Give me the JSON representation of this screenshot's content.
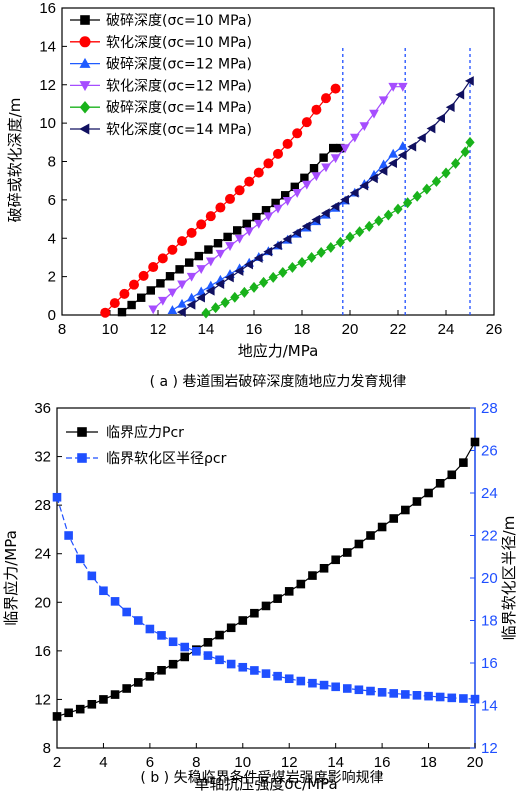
{
  "chart_data": [
    {
      "type": "line",
      "caption": "( a ) 巷道围岩破碎深度随地应力发育规律",
      "xlabel": "地应力/MPa",
      "ylabel": "破碎或软化深度/m",
      "xlim": [
        8,
        26
      ],
      "ylim": [
        0,
        16
      ],
      "xticks": [
        "8",
        "10",
        "12",
        "14",
        "16",
        "18",
        "20",
        "22",
        "24",
        "26"
      ],
      "yticks": [
        "0",
        "2",
        "4",
        "6",
        "8",
        "10",
        "12",
        "14",
        "16"
      ],
      "legend_position": "top-left",
      "series": [
        {
          "name": "破碎深度(σc=10 MPa)",
          "color": "#000000",
          "marker": "square",
          "x": [
            10.5,
            10.9,
            11.3,
            11.7,
            12.1,
            12.5,
            12.9,
            13.3,
            13.7,
            14.1,
            14.5,
            14.9,
            15.3,
            15.7,
            16.1,
            16.5,
            16.9,
            17.3,
            17.7,
            18.1,
            18.5,
            18.9,
            19.3,
            19.6
          ],
          "y": [
            0.15,
            0.52,
            0.9,
            1.28,
            1.65,
            2.02,
            2.38,
            2.73,
            3.07,
            3.41,
            3.74,
            4.07,
            4.41,
            4.75,
            5.1,
            5.46,
            5.84,
            6.24,
            6.68,
            7.15,
            7.65,
            8.2,
            8.7,
            8.7
          ]
        },
        {
          "name": "软化深度(σc=10 MPa)",
          "color": "#ff0000",
          "marker": "circle",
          "x": [
            9.8,
            10.2,
            10.6,
            11.0,
            11.4,
            11.8,
            12.2,
            12.6,
            13.0,
            13.4,
            13.8,
            14.2,
            14.6,
            15.0,
            15.4,
            15.8,
            16.2,
            16.6,
            17.0,
            17.4,
            17.8,
            18.2,
            18.6,
            19.0,
            19.4
          ],
          "y": [
            0.12,
            0.62,
            1.1,
            1.58,
            2.04,
            2.5,
            2.95,
            3.4,
            3.85,
            4.28,
            4.72,
            5.15,
            5.6,
            6.05,
            6.5,
            6.95,
            7.42,
            7.9,
            8.4,
            8.92,
            9.47,
            10.05,
            10.7,
            11.3,
            11.8
          ]
        },
        {
          "name": "破碎深度(σc=12 MPa)",
          "color": "#1f5bff",
          "marker": "triangle-up",
          "x": [
            12.6,
            13.0,
            13.4,
            13.8,
            14.2,
            14.6,
            15.0,
            15.4,
            15.8,
            16.2,
            16.6,
            17.0,
            17.4,
            17.8,
            18.2,
            18.6,
            19.0,
            19.4,
            19.8,
            20.2,
            20.6,
            21.0,
            21.4,
            21.8,
            22.2
          ],
          "y": [
            0.25,
            0.58,
            0.9,
            1.22,
            1.53,
            1.83,
            2.13,
            2.43,
            2.72,
            3.02,
            3.32,
            3.62,
            3.92,
            4.23,
            4.55,
            4.88,
            5.22,
            5.58,
            5.96,
            6.37,
            6.82,
            7.3,
            7.84,
            8.4,
            8.8
          ]
        },
        {
          "name": "软化深度(σc=12 MPa)",
          "color": "#a64dff",
          "marker": "triangle-down",
          "x": [
            11.8,
            12.2,
            12.6,
            13.0,
            13.4,
            13.8,
            14.2,
            14.6,
            15.0,
            15.4,
            15.8,
            16.2,
            16.6,
            17.0,
            17.4,
            17.8,
            18.2,
            18.6,
            19.0,
            19.4,
            19.8,
            20.2,
            20.6,
            21.0,
            21.4,
            21.8,
            22.2
          ],
          "y": [
            0.3,
            0.75,
            1.18,
            1.6,
            2.0,
            2.4,
            2.8,
            3.2,
            3.6,
            3.98,
            4.37,
            4.76,
            5.15,
            5.55,
            5.95,
            6.37,
            6.8,
            7.24,
            7.7,
            8.18,
            8.7,
            9.25,
            9.85,
            10.5,
            11.2,
            11.9,
            11.9
          ]
        },
        {
          "name": "破碎深度(σc=14 MPa)",
          "color": "#19b21b",
          "marker": "diamond",
          "x": [
            14.0,
            14.4,
            14.8,
            15.2,
            15.6,
            16.0,
            16.4,
            16.8,
            17.2,
            17.6,
            18.0,
            18.4,
            18.8,
            19.2,
            19.6,
            20.0,
            20.4,
            20.8,
            21.2,
            21.6,
            22.0,
            22.4,
            22.8,
            23.2,
            23.6,
            24.0,
            24.4,
            24.8,
            25.0
          ],
          "y": [
            0.1,
            0.38,
            0.65,
            0.92,
            1.18,
            1.44,
            1.7,
            1.96,
            2.22,
            2.48,
            2.74,
            3.0,
            3.26,
            3.52,
            3.79,
            4.06,
            4.34,
            4.62,
            4.91,
            5.21,
            5.52,
            5.85,
            6.19,
            6.56,
            6.96,
            7.4,
            7.9,
            8.5,
            9.0
          ]
        },
        {
          "name": "软化深度(σc=14 MPa)",
          "color": "#101060",
          "marker": "triangle-left",
          "x": [
            13.0,
            13.4,
            13.8,
            14.2,
            14.6,
            15.0,
            15.4,
            15.8,
            16.2,
            16.6,
            17.0,
            17.4,
            17.8,
            18.2,
            18.6,
            19.0,
            19.4,
            19.8,
            20.2,
            20.6,
            21.0,
            21.4,
            21.8,
            22.2,
            22.6,
            23.0,
            23.4,
            23.8,
            24.2,
            24.6,
            25.0
          ],
          "y": [
            0.15,
            0.53,
            0.9,
            1.26,
            1.61,
            1.95,
            2.29,
            2.63,
            2.97,
            3.3,
            3.63,
            3.96,
            4.29,
            4.63,
            4.97,
            5.31,
            5.66,
            6.01,
            6.37,
            6.74,
            7.12,
            7.51,
            7.91,
            8.33,
            8.77,
            9.23,
            9.72,
            10.25,
            10.83,
            11.48,
            12.2
          ]
        }
      ],
      "vlines": [
        19.7,
        22.3,
        25.0
      ]
    },
    {
      "type": "line",
      "caption": "( b ) 失稳临界条件受煤岩强度影响规律",
      "xlabel": "单轴抗压强度σc/MPa",
      "ylabel": "临界应力/MPa",
      "ylabel_right": "临界软化区半径/m",
      "xlim": [
        2,
        20
      ],
      "ylim": [
        8,
        36
      ],
      "ylim_right": [
        12,
        28
      ],
      "xticks": [
        "2",
        "4",
        "6",
        "8",
        "10",
        "12",
        "14",
        "16",
        "18",
        "20"
      ],
      "yticks": [
        "8",
        "12",
        "16",
        "20",
        "24",
        "28",
        "32",
        "36"
      ],
      "yticks_right": [
        "12",
        "14",
        "16",
        "18",
        "20",
        "22",
        "24",
        "26",
        "28"
      ],
      "legend_position": "top-left",
      "series": [
        {
          "name": "临界应力Pcr",
          "color": "#000000",
          "marker": "square",
          "axis": "left",
          "x": [
            2,
            2.5,
            3,
            3.5,
            4,
            4.5,
            5,
            5.5,
            6,
            6.5,
            7,
            7.5,
            8,
            8.5,
            9,
            9.5,
            10,
            10.5,
            11,
            11.5,
            12,
            12.5,
            13,
            13.5,
            14,
            14.5,
            15,
            15.5,
            16,
            16.5,
            17,
            17.5,
            18,
            18.5,
            19,
            19.5,
            20
          ],
          "y": [
            10.6,
            10.9,
            11.2,
            11.6,
            12.0,
            12.4,
            12.9,
            13.4,
            13.9,
            14.4,
            14.9,
            15.5,
            16.1,
            16.7,
            17.3,
            17.9,
            18.5,
            19.1,
            19.7,
            20.3,
            20.9,
            21.5,
            22.2,
            22.8,
            23.5,
            24.1,
            24.8,
            25.5,
            26.2,
            26.9,
            27.6,
            28.3,
            29.0,
            29.8,
            30.5,
            31.5,
            33.2
          ]
        },
        {
          "name": "临界软化区半径ρcr",
          "color": "#1f4fff",
          "marker": "square",
          "axis": "right",
          "x": [
            2,
            2.5,
            3,
            3.5,
            4,
            4.5,
            5,
            5.5,
            6,
            6.5,
            7,
            7.5,
            8,
            8.5,
            9,
            9.5,
            10,
            10.5,
            11,
            11.5,
            12,
            12.5,
            13,
            13.5,
            14,
            14.5,
            15,
            15.5,
            16,
            16.5,
            17,
            17.5,
            18,
            18.5,
            19,
            19.5,
            20
          ],
          "y": [
            23.8,
            22.0,
            20.9,
            20.1,
            19.4,
            18.9,
            18.4,
            18.0,
            17.6,
            17.3,
            17.0,
            16.75,
            16.55,
            16.35,
            16.15,
            15.95,
            15.8,
            15.65,
            15.5,
            15.38,
            15.26,
            15.15,
            15.05,
            14.96,
            14.88,
            14.8,
            14.74,
            14.68,
            14.62,
            14.57,
            14.52,
            14.48,
            14.44,
            14.4,
            14.36,
            14.33,
            14.3
          ]
        }
      ]
    }
  ]
}
